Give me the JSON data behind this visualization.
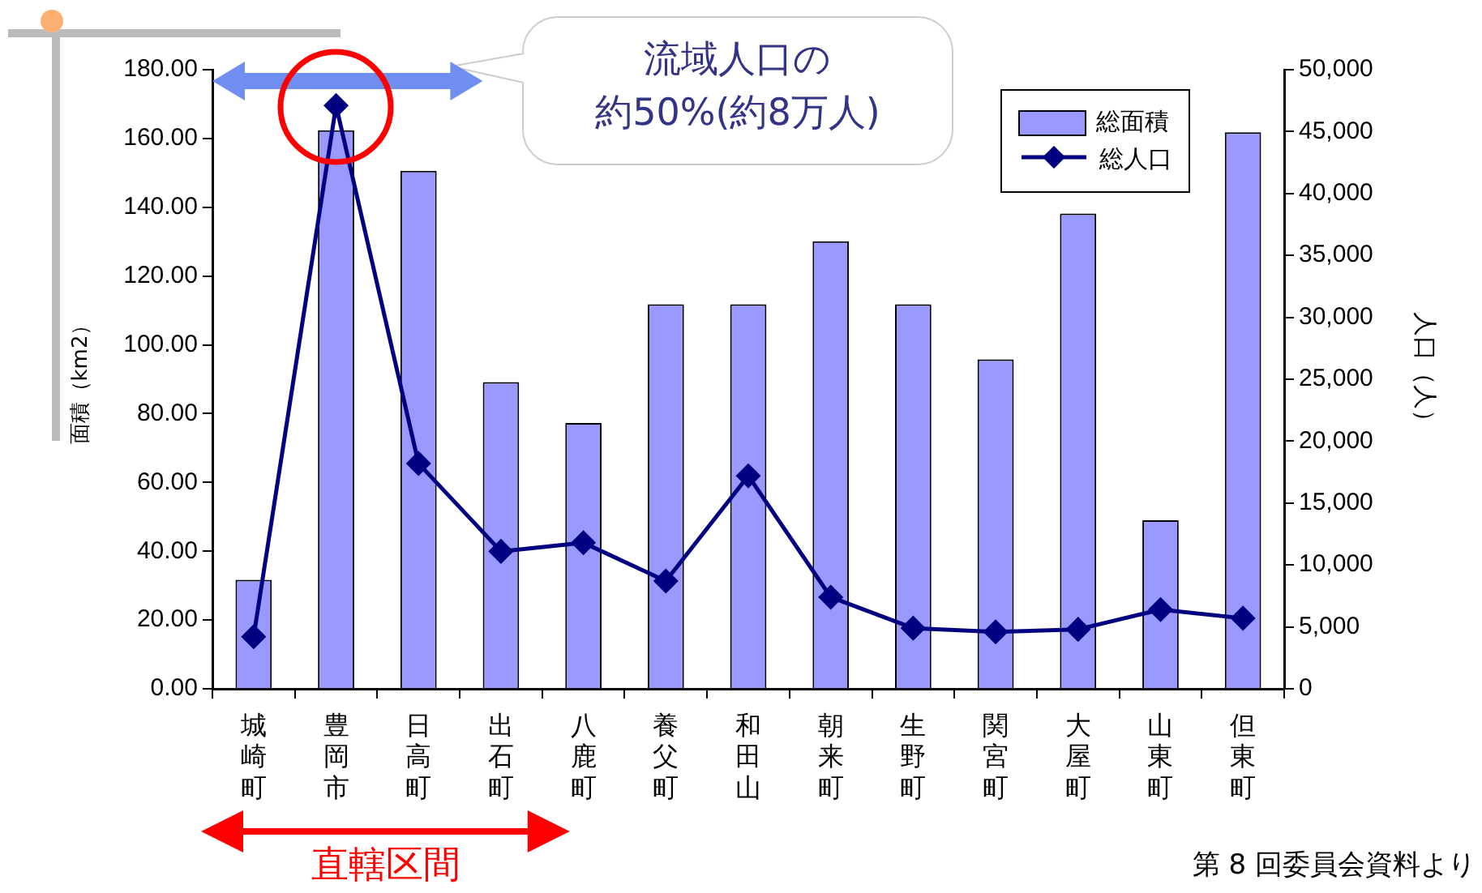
{
  "chart_data": {
    "type": "bar",
    "ylabel": "面積（km2）",
    "y2label": "人口（人）",
    "categories": [
      "城崎町",
      "豊岡市",
      "日高町",
      "出石町",
      "八鹿町",
      "養父町",
      "和田山",
      "朝来町",
      "生野町",
      "関宮町",
      "大屋町",
      "山東町",
      "但東町"
    ],
    "series": [
      {
        "name": "総面積",
        "color": "#9999ff",
        "values": [
          31.7,
          162.4,
          150.6,
          89.2,
          77.3,
          111.8,
          111.8,
          130.1,
          111.8,
          95.8,
          138.2,
          49.0,
          161.8
        ]
      },
      {
        "name": "総人口",
        "type": "line",
        "axis": "y2",
        "color": "#000080",
        "marker": "diamond",
        "values": [
          4200,
          47100,
          18200,
          11100,
          11800,
          8700,
          17200,
          7400,
          4900,
          4600,
          4800,
          6400,
          5700
        ]
      }
    ],
    "ylim": [
      0,
      180
    ],
    "yticks": [
      {
        "value": 0,
        "label": "0.00"
      },
      {
        "value": 20,
        "label": "20.00"
      },
      {
        "value": 40,
        "label": "40.00"
      },
      {
        "value": 60,
        "label": "60.00"
      },
      {
        "value": 80,
        "label": "80.00"
      },
      {
        "value": 100,
        "label": "100.00"
      },
      {
        "value": 120,
        "label": "120.00"
      },
      {
        "value": 140,
        "label": "140.00"
      },
      {
        "value": 160,
        "label": "160.00"
      },
      {
        "value": 180,
        "label": "180.00"
      }
    ],
    "y2lim": [
      0,
      50000
    ],
    "y2ticks": [
      0,
      {
        "value": 5000,
        "label": "5,000"
      },
      {
        "value": 10000,
        "label": "10,000"
      },
      {
        "value": 15000,
        "label": "15,000"
      },
      {
        "value": 20000,
        "label": "20,000"
      },
      {
        "value": 25000,
        "label": "25,000"
      },
      {
        "value": 30000,
        "label": "30,000"
      },
      {
        "value": 35000,
        "label": "35,000"
      },
      {
        "value": 40000,
        "label": "40,000"
      },
      {
        "value": 45000,
        "label": "45,000"
      },
      {
        "value": 50000,
        "label": "50,000"
      }
    ],
    "grid": false,
    "legend": "top right",
    "annotations": [
      "流域人口の",
      "約50%(約8万人)",
      "直轄区間",
      "第 8 回委員会資料より"
    ]
  }
}
